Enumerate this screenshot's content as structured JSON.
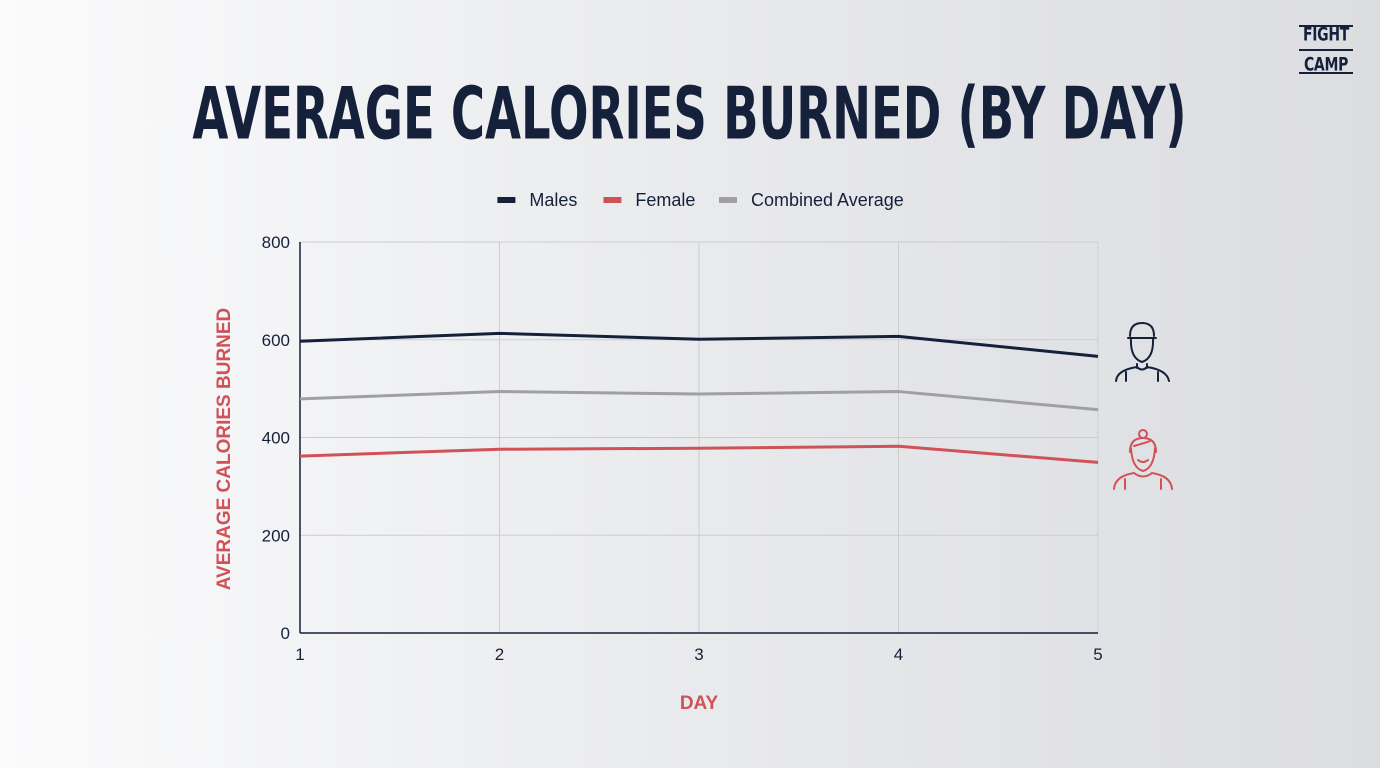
{
  "brand": {
    "logo_line1": "FIGHT",
    "logo_line2": "CAMP"
  },
  "chart_data": {
    "type": "line",
    "title": "AVERAGE CALORIES BURNED (BY DAY)",
    "xlabel": "DAY",
    "ylabel": "AVERAGE CALORIES BURNED",
    "x": [
      1,
      2,
      3,
      4,
      5
    ],
    "x_tick_labels": [
      "1",
      "2",
      "3",
      "4",
      "5"
    ],
    "ylim": [
      0,
      800
    ],
    "y_ticks": [
      0,
      200,
      400,
      600,
      800
    ],
    "y_tick_labels": [
      "0",
      "200",
      "400",
      "600",
      "800"
    ],
    "grid": true,
    "legend_position": "top",
    "series": [
      {
        "name": "Males",
        "color": "#15203a",
        "values": [
          597,
          613,
          601,
          607,
          566
        ]
      },
      {
        "name": "Female",
        "color": "#d05257",
        "values": [
          362,
          376,
          378,
          382,
          349
        ]
      },
      {
        "name": "Combined Average",
        "color": "#a0a0a2",
        "values": [
          479,
          494,
          489,
          494,
          457
        ]
      }
    ],
    "icons": {
      "male": "male-avatar-icon",
      "female": "female-avatar-icon"
    },
    "label_color": "#d05257",
    "text_color": "#15203a"
  }
}
